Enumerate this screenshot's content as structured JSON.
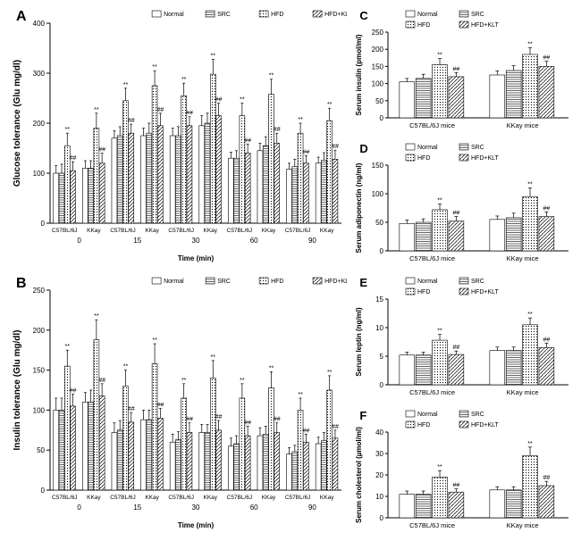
{
  "colors": {
    "bg": "#ffffff",
    "axis": "#000000",
    "bar_stroke": "#000000",
    "text": "#000000"
  },
  "patterns": {
    "normal": {
      "fill": "#ffffff"
    },
    "src": {
      "fill": "pattern-horiz"
    },
    "hfd": {
      "fill": "pattern-dots"
    },
    "hfd_klt": {
      "fill": "pattern-diag"
    }
  },
  "legend": {
    "items": [
      "Normal",
      "SRC",
      "HFD",
      "HFD+KLT"
    ]
  },
  "panelA": {
    "label": "A",
    "y_label": "Glucose tolerance (Glu mg/dl)",
    "x_label": "Time (min)",
    "y_lim": [
      0,
      400
    ],
    "y_ticks": [
      0,
      100,
      200,
      300,
      400
    ],
    "timepoints": [
      "0",
      "15",
      "30",
      "60",
      "90"
    ],
    "subgroups": [
      "C57BL/6J",
      "KKay"
    ],
    "data": {
      "0": {
        "C57BL/6J": {
          "Normal": [
            100,
            15
          ],
          "SRC": [
            100,
            18
          ],
          "HFD": [
            155,
            25,
            "**"
          ],
          "HFD+KLT": [
            105,
            18,
            "##"
          ]
        },
        "KKay": {
          "Normal": [
            110,
            15
          ],
          "SRC": [
            110,
            15
          ],
          "HFD": [
            190,
            30,
            "**"
          ],
          "HFD+KLT": [
            120,
            20,
            "##"
          ]
        }
      },
      "15": {
        "C57BL/6J": {
          "Normal": [
            170,
            15
          ],
          "SRC": [
            175,
            18
          ],
          "HFD": [
            245,
            25,
            "**"
          ],
          "HFD+KLT": [
            180,
            18,
            "##"
          ]
        },
        "KKay": {
          "Normal": [
            175,
            15
          ],
          "SRC": [
            180,
            20
          ],
          "HFD": [
            275,
            30,
            "**"
          ],
          "HFD+KLT": [
            195,
            25,
            "##"
          ]
        }
      },
      "30": {
        "C57BL/6J": {
          "Normal": [
            175,
            15
          ],
          "SRC": [
            175,
            18
          ],
          "HFD": [
            255,
            25,
            "**"
          ],
          "HFD+KLT": [
            195,
            18,
            "##"
          ]
        },
        "KKay": {
          "Normal": [
            195,
            20
          ],
          "SRC": [
            200,
            20
          ],
          "HFD": [
            298,
            30,
            "**"
          ],
          "HFD+KLT": [
            215,
            25,
            "##"
          ]
        }
      },
      "60": {
        "C57BL/6J": {
          "Normal": [
            130,
            12
          ],
          "SRC": [
            130,
            15
          ],
          "HFD": [
            215,
            25,
            "**"
          ],
          "HFD+KLT": [
            140,
            18,
            "##"
          ]
        },
        "KKay": {
          "Normal": [
            145,
            15
          ],
          "SRC": [
            155,
            18
          ],
          "HFD": [
            258,
            30,
            "**"
          ],
          "HFD+KLT": [
            160,
            20,
            "##"
          ]
        }
      },
      "90": {
        "C57BL/6J": {
          "Normal": [
            108,
            12
          ],
          "SRC": [
            113,
            15
          ],
          "HFD": [
            180,
            20,
            "**"
          ],
          "HFD+KLT": [
            120,
            15,
            "##"
          ]
        },
        "KKay": {
          "Normal": [
            120,
            12
          ],
          "SRC": [
            126,
            15
          ],
          "HFD": [
            205,
            25,
            "**"
          ],
          "HFD+KLT": [
            128,
            18,
            "##"
          ]
        }
      }
    }
  },
  "panelB": {
    "label": "B",
    "y_label": "Insulin tolerance (Glu mg/dl)",
    "x_label": "Time (min)",
    "y_lim": [
      0,
      250
    ],
    "y_ticks": [
      0,
      50,
      100,
      150,
      200,
      250
    ],
    "timepoints": [
      "0",
      "15",
      "30",
      "60",
      "90"
    ],
    "subgroups": [
      "C57BL/6J",
      "KKay"
    ],
    "data": {
      "0": {
        "C57BL/6J": {
          "Normal": [
            100,
            15
          ],
          "SRC": [
            100,
            15
          ],
          "HFD": [
            155,
            20,
            "**"
          ],
          "HFD+KLT": [
            105,
            15,
            "##"
          ]
        },
        "KKay": {
          "Normal": [
            110,
            12
          ],
          "SRC": [
            110,
            15
          ],
          "HFD": [
            188,
            25,
            "**"
          ],
          "HFD+KLT": [
            118,
            15,
            "##"
          ]
        }
      },
      "15": {
        "C57BL/6J": {
          "Normal": [
            72,
            12
          ],
          "SRC": [
            75,
            12
          ],
          "HFD": [
            130,
            20,
            "**"
          ],
          "HFD+KLT": [
            85,
            12,
            "##"
          ]
        },
        "KKay": {
          "Normal": [
            88,
            12
          ],
          "SRC": [
            88,
            12
          ],
          "HFD": [
            158,
            25,
            "**"
          ],
          "HFD+KLT": [
            90,
            12,
            "##"
          ]
        }
      },
      "30": {
        "C57BL/6J": {
          "Normal": [
            60,
            10
          ],
          "SRC": [
            63,
            10
          ],
          "HFD": [
            115,
            18,
            "**"
          ],
          "HFD+KLT": [
            72,
            12,
            "##"
          ]
        },
        "KKay": {
          "Normal": [
            72,
            10
          ],
          "SRC": [
            72,
            10
          ],
          "HFD": [
            140,
            22,
            "**"
          ],
          "HFD+KLT": [
            75,
            12,
            "##"
          ]
        }
      },
      "60": {
        "C57BL/6J": {
          "Normal": [
            55,
            10
          ],
          "SRC": [
            58,
            10
          ],
          "HFD": [
            115,
            18,
            "**"
          ],
          "HFD+KLT": [
            68,
            12,
            "##"
          ]
        },
        "KKay": {
          "Normal": [
            68,
            10
          ],
          "SRC": [
            70,
            10
          ],
          "HFD": [
            128,
            20,
            "**"
          ],
          "HFD+KLT": [
            72,
            12,
            "##"
          ]
        }
      },
      "90": {
        "C57BL/6J": {
          "Normal": [
            45,
            8
          ],
          "SRC": [
            48,
            8
          ],
          "HFD": [
            100,
            15,
            "**"
          ],
          "HFD+KLT": [
            60,
            10,
            "##"
          ]
        },
        "KKay": {
          "Normal": [
            58,
            8
          ],
          "SRC": [
            62,
            10
          ],
          "HFD": [
            125,
            18,
            "**"
          ],
          "HFD+KLT": [
            65,
            10,
            "##"
          ]
        }
      }
    }
  },
  "panelC": {
    "label": "C",
    "y_label": "Serum insulin (pmol/ml)",
    "y_lim": [
      0,
      250
    ],
    "y_ticks": [
      0,
      50,
      100,
      150,
      200,
      250
    ],
    "groups": [
      "C57BL/6J mice",
      "KKay mice"
    ],
    "data": {
      "C57BL/6J mice": {
        "Normal": [
          105,
          10
        ],
        "SRC": [
          115,
          12
        ],
        "HFD": [
          155,
          18,
          "**"
        ],
        "HFD+KLT": [
          120,
          12,
          "##"
        ]
      },
      "KKay mice": {
        "Normal": [
          125,
          12
        ],
        "SRC": [
          138,
          14
        ],
        "HFD": [
          185,
          20,
          "**"
        ],
        "HFD+KLT": [
          150,
          15,
          "##"
        ]
      }
    }
  },
  "panelD": {
    "label": "D",
    "y_label": "Serum adiponectin (ng/ml)",
    "y_lim": [
      0,
      150
    ],
    "y_ticks": [
      0,
      50,
      100,
      150
    ],
    "groups": [
      "C57BL/6J mice",
      "KKay mice"
    ],
    "data": {
      "C57BL/6J mice": {
        "Normal": [
          48,
          6
        ],
        "SRC": [
          50,
          6
        ],
        "HFD": [
          72,
          10,
          "**"
        ],
        "HFD+KLT": [
          52,
          8,
          "##"
        ]
      },
      "KKay mice": {
        "Normal": [
          55,
          6
        ],
        "SRC": [
          58,
          8
        ],
        "HFD": [
          95,
          15,
          "**"
        ],
        "HFD+KLT": [
          60,
          8,
          "##"
        ]
      }
    }
  },
  "panelE": {
    "label": "E",
    "y_label": "Serum leptin (ng/ml)",
    "y_lim": [
      0,
      15
    ],
    "y_ticks": [
      0,
      5,
      10,
      15
    ],
    "groups": [
      "C57BL/6J mice",
      "KKay mice"
    ],
    "data": {
      "C57BL/6J mice": {
        "Normal": [
          5.2,
          0.5
        ],
        "SRC": [
          5.2,
          0.5
        ],
        "HFD": [
          7.8,
          1.0,
          "**"
        ],
        "HFD+KLT": [
          5.3,
          0.6,
          "##"
        ]
      },
      "KKay mice": {
        "Normal": [
          6.0,
          0.6
        ],
        "SRC": [
          6.0,
          0.6
        ],
        "HFD": [
          10.5,
          1.2,
          "**"
        ],
        "HFD+KLT": [
          6.5,
          0.8,
          "##"
        ]
      }
    }
  },
  "panelF": {
    "label": "F",
    "y_label": "Serum cholesterol (µmol/ml)",
    "y_lim": [
      0,
      40
    ],
    "y_ticks": [
      0,
      10,
      20,
      30,
      40
    ],
    "groups": [
      "C57BL/6J mice",
      "KKay mice"
    ],
    "data": {
      "C57BL/6J mice": {
        "Normal": [
          11,
          1.5
        ],
        "SRC": [
          11,
          1.5
        ],
        "HFD": [
          19,
          3,
          "**"
        ],
        "HFD+KLT": [
          12,
          1.5,
          "##"
        ]
      },
      "KKay mice": {
        "Normal": [
          13,
          1.5
        ],
        "SRC": [
          13,
          1.5
        ],
        "HFD": [
          29,
          4,
          "**"
        ],
        "HFD+KLT": [
          15,
          2,
          "##"
        ]
      }
    }
  }
}
